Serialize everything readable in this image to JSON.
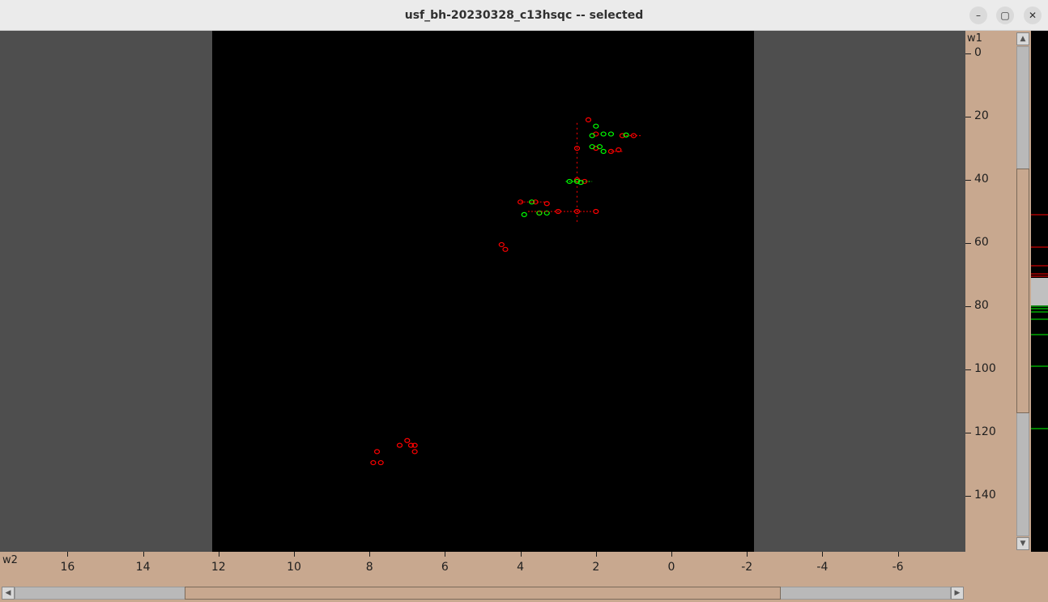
{
  "window": {
    "title": "usf_bh-20230328_c13hsqc -- selected",
    "buttons": {
      "minimize": "–",
      "maximize": "▢",
      "close": "✕"
    }
  },
  "spectrum": {
    "y_axis_name": "w1",
    "x_axis_name": "w2",
    "colors": {
      "positive": "#ff0000",
      "negative": "#00ff00",
      "background": "#000000",
      "outside": "#4e4e4e",
      "frame": "#c8a88f"
    },
    "y_ticks": [
      "0",
      "20",
      "40",
      "60",
      "80",
      "100",
      "120",
      "140"
    ],
    "x_ticks": [
      "16",
      "14",
      "12",
      "10",
      "8",
      "6",
      "4",
      "2",
      "0",
      "-2",
      "-4",
      "-6"
    ]
  },
  "chart_data": {
    "type": "scatter",
    "title": "",
    "xlabel": "w2",
    "ylabel": "w1",
    "xlim": [
      17.3,
      -8.0
    ],
    "ylim": [
      0,
      155
    ],
    "x_inverted": true,
    "grid": false,
    "series": [
      {
        "color": "#ff0000",
        "points": [
          [
            2.2,
            21
          ],
          [
            2.0,
            25.5
          ],
          [
            1.3,
            26
          ],
          [
            1.0,
            26
          ],
          [
            2.5,
            30
          ],
          [
            2.0,
            30
          ],
          [
            1.6,
            31
          ],
          [
            1.4,
            30.5
          ],
          [
            2.5,
            40
          ],
          [
            2.3,
            40.5
          ],
          [
            3.0,
            50
          ],
          [
            2.5,
            50
          ],
          [
            2.0,
            50
          ],
          [
            3.5,
            50.5
          ],
          [
            4.0,
            47
          ],
          [
            3.6,
            47
          ],
          [
            3.3,
            47.5
          ],
          [
            4.5,
            60.5
          ],
          [
            4.4,
            62
          ],
          [
            7.8,
            126
          ],
          [
            7.7,
            129.5
          ],
          [
            7.2,
            124
          ],
          [
            7.0,
            122.5
          ],
          [
            6.9,
            124
          ],
          [
            6.8,
            124
          ],
          [
            6.8,
            126
          ],
          [
            7.9,
            129.5
          ]
        ]
      },
      {
        "color": "#00ff00",
        "points": [
          [
            2.0,
            23
          ],
          [
            2.1,
            26
          ],
          [
            1.8,
            25.5
          ],
          [
            1.6,
            25.5
          ],
          [
            1.2,
            25.8
          ],
          [
            2.1,
            29.5
          ],
          [
            1.9,
            29.5
          ],
          [
            1.8,
            31
          ],
          [
            2.5,
            40.5
          ],
          [
            2.4,
            40.8
          ],
          [
            2.7,
            40.5
          ],
          [
            3.7,
            47
          ],
          [
            3.9,
            51
          ],
          [
            3.5,
            50.5
          ],
          [
            3.3,
            50.5
          ]
        ]
      }
    ]
  }
}
